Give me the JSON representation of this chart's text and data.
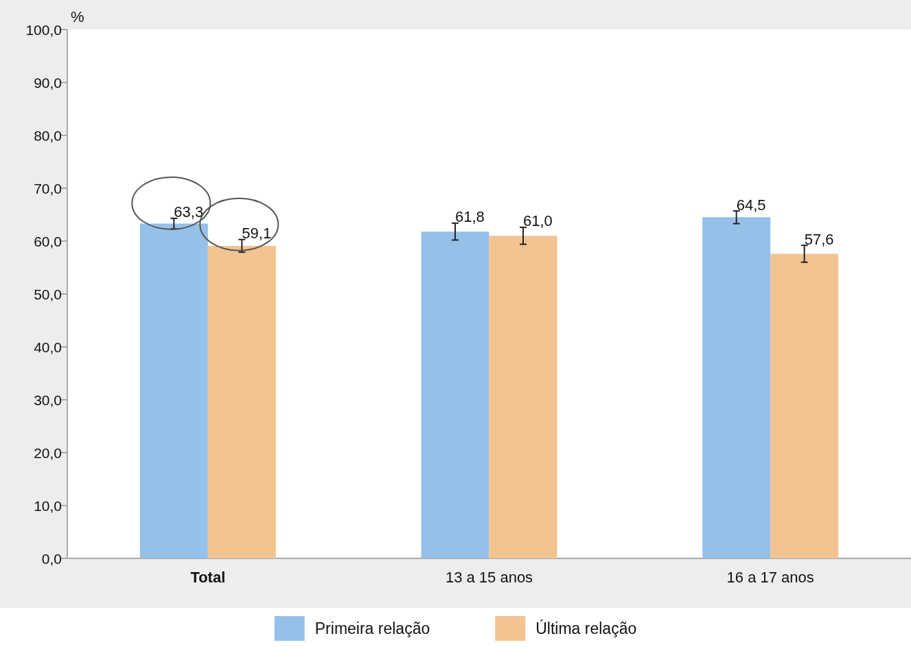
{
  "chart_data": {
    "type": "bar",
    "ylabel": "%",
    "categories": [
      "Total",
      "13 a 15 anos",
      "16 a 17 anos"
    ],
    "series": [
      {
        "name": "Primeira relação",
        "color": "#95c1e8",
        "values": [
          63.3,
          61.8,
          64.5
        ],
        "value_labels": [
          "63,3",
          "61,8",
          "64,5"
        ],
        "errors": [
          1.0,
          1.6,
          1.2
        ]
      },
      {
        "name": "Última relação",
        "color": "#f2c491",
        "values": [
          59.1,
          61.0,
          57.6
        ],
        "value_labels": [
          "59,1",
          "61,0",
          "57,6"
        ],
        "errors": [
          1.2,
          1.6,
          1.6
        ]
      }
    ],
    "ylim": [
      0,
      100
    ],
    "yticks": [
      {
        "value": 0,
        "label": "0,0"
      },
      {
        "value": 10,
        "label": "10,0"
      },
      {
        "value": 20,
        "label": "20,0"
      },
      {
        "value": 30,
        "label": "30,0"
      },
      {
        "value": 40,
        "label": "40,0"
      },
      {
        "value": 50,
        "label": "50,0"
      },
      {
        "value": 60,
        "label": "60,0"
      },
      {
        "value": 70,
        "label": "70,0"
      },
      {
        "value": 80,
        "label": "80,0"
      },
      {
        "value": 90,
        "label": "90,0"
      },
      {
        "value": 100,
        "label": "100,0"
      }
    ],
    "grid": false,
    "legend": "bottom"
  }
}
